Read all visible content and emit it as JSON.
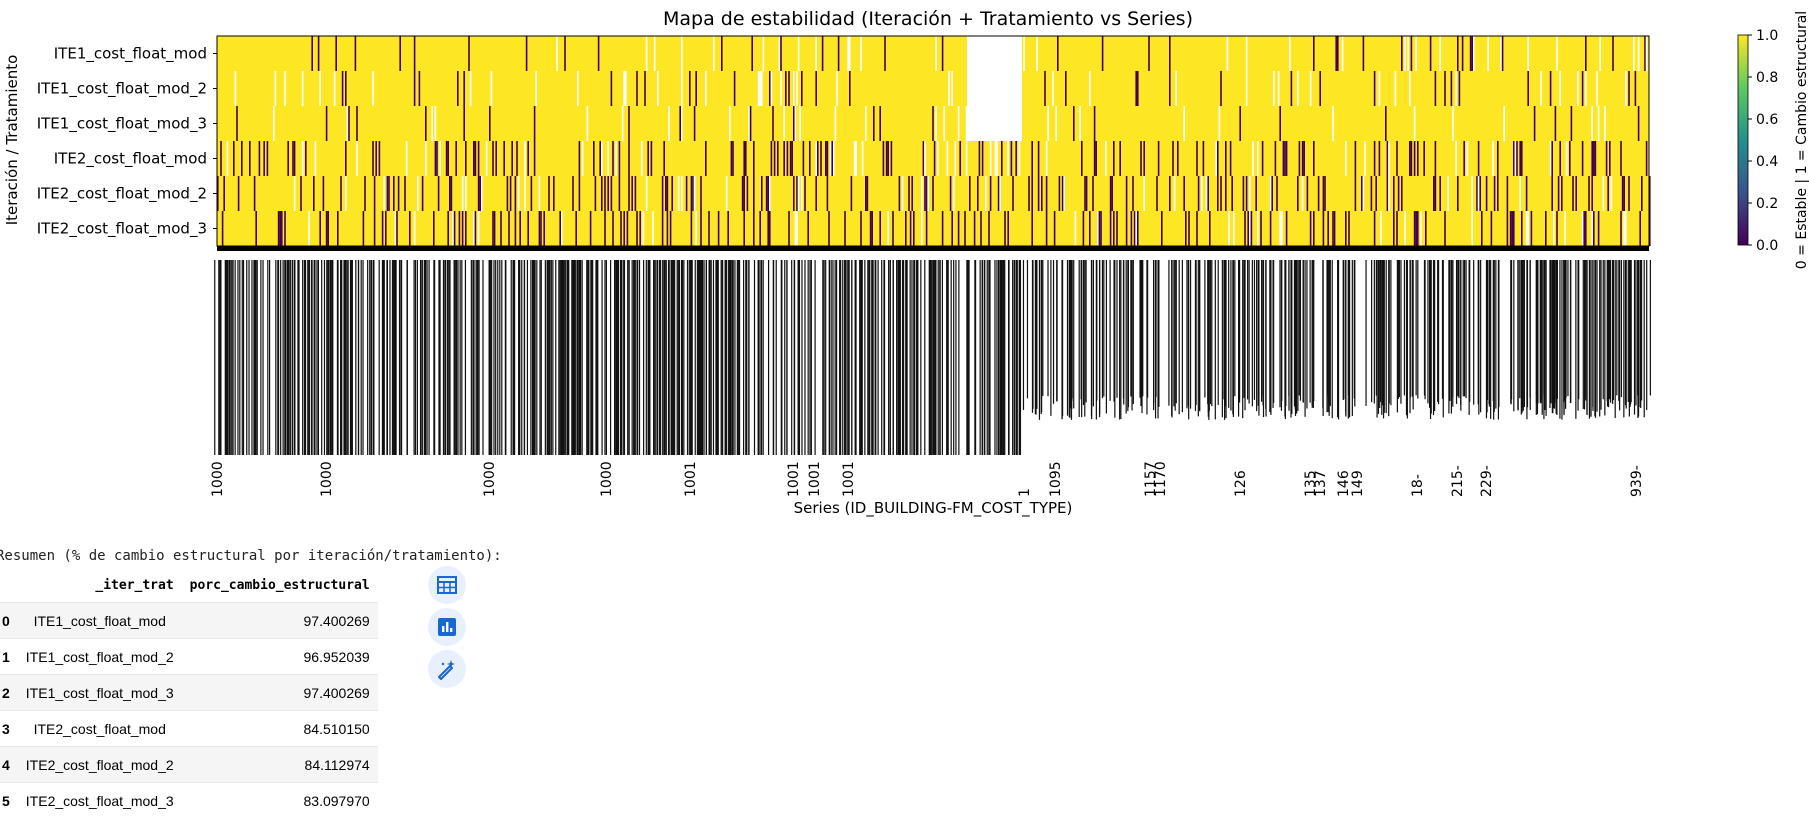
{
  "chart_data": {
    "type": "heatmap",
    "title": "Mapa de estabilidad (Iteración + Tratamiento vs Series)",
    "xlabel": "Series (ID_BUILDING-FM_COST_TYPE)",
    "ylabel": "Iteración / Tratamiento",
    "rows": [
      "ITE1_cost_float_mod",
      "ITE1_cost_float_mod_2",
      "ITE1_cost_float_mod_3",
      "ITE2_cost_float_mod",
      "ITE2_cost_float_mod_2",
      "ITE2_cost_float_mod_3"
    ],
    "value_range": [
      0,
      1
    ],
    "colorbar": {
      "label": "0 = Estable | 1 = Cambio estructural",
      "ticks": [
        "0.0",
        "0.2",
        "0.4",
        "0.6",
        "0.8",
        "1.0"
      ],
      "colormap": "viridis"
    },
    "x_tick_labels_visible": [
      "1000",
      "1000",
      "1000",
      "1000",
      "1001",
      "1001",
      "1001",
      "1001",
      "1",
      "1095",
      "1157",
      "1170",
      "126",
      "135",
      "137",
      "146",
      "149",
      "18-",
      "215-",
      "229-",
      "939-"
    ],
    "legend": "none",
    "grid": false
  },
  "output": {
    "summary_text": "Resumen (% de cambio estructural por iteración/tratamiento):",
    "table": {
      "columns": [
        "_iter_trat",
        "porc_cambio_estructural"
      ],
      "rows": [
        {
          "idx": "0",
          "name": "ITE1_cost_float_mod",
          "value": "97.400269"
        },
        {
          "idx": "1",
          "name": "ITE1_cost_float_mod_2",
          "value": "96.952039"
        },
        {
          "idx": "2",
          "name": "ITE1_cost_float_mod_3",
          "value": "97.400269"
        },
        {
          "idx": "3",
          "name": "ITE2_cost_float_mod",
          "value": "84.510150"
        },
        {
          "idx": "4",
          "name": "ITE2_cost_float_mod_2",
          "value": "84.112974"
        },
        {
          "idx": "5",
          "name": "ITE2_cost_float_mod_3",
          "value": "83.097970"
        }
      ]
    },
    "buttons": [
      {
        "icon": "table-icon"
      },
      {
        "icon": "chart-icon"
      },
      {
        "icon": "magic-wand-icon"
      }
    ]
  },
  "colors": {
    "yellow": "#fde725",
    "purple": "#440154",
    "button_bg": "#e8f0fe",
    "icon_blue": "#1967d2"
  }
}
